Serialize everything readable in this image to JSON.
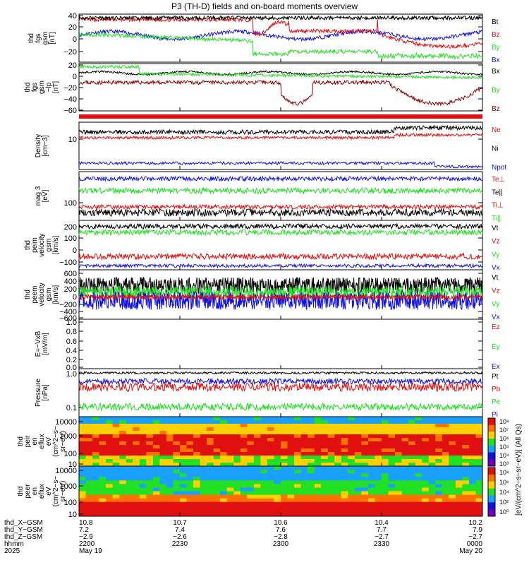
{
  "title": "P3 (TH-D) fields and on-board moments overview",
  "colors": {
    "black": "#000000",
    "red": "#e01010",
    "green": "#22e022",
    "blue": "#1010e0",
    "darkred": "#8b0000"
  },
  "chart_data": [
    {
      "type": "line",
      "panel": "thd_fgs_gsm",
      "ylabel_lines": [
        "thd",
        "fgs",
        "gsm",
        "[nT]"
      ],
      "yticks": [
        "40",
        "20",
        "0",
        "−20"
      ],
      "ylim": [
        -35,
        42
      ],
      "series": [
        {
          "name": "Bt",
          "color": "red_black",
          "legend_color": "#000000"
        },
        {
          "name": "Bz",
          "legend_color": "#e01010"
        },
        {
          "name": "By",
          "legend_color": "#22e022"
        },
        {
          "name": "Bx",
          "legend_color": "#1010e0"
        }
      ]
    },
    {
      "type": "line",
      "panel": "thd_fgs_gsm_lp",
      "ylabel_lines": [
        "thd",
        "fgs",
        "gsm",
        "−lp"
      ],
      "yunits": "[nT]",
      "yticks": [
        "20",
        "0",
        "−20",
        "−40",
        "−60"
      ],
      "ylim": [
        -75,
        25
      ],
      "series": [
        {
          "name": "Bx",
          "legend_color": "#000000"
        },
        {
          "name": "By",
          "legend_color": "#22e022"
        },
        {
          "name": "Bz",
          "legend_color": "#8b0000"
        }
      ]
    },
    {
      "type": "line",
      "panel": "density",
      "ylabel_lines": [
        "Density",
        "[cm−3]"
      ],
      "yticks": [
        "10"
      ],
      "scale": "log",
      "series": [
        {
          "name": "Ne",
          "legend_color": "#e01010"
        },
        {
          "name": "Ni",
          "legend_color": "#000000"
        },
        {
          "name": "Npot",
          "legend_color": "#1010e0"
        }
      ]
    },
    {
      "type": "line",
      "panel": "temperature",
      "ylabel_lines": [
        "mag 3",
        "[eV]"
      ],
      "yticks": [
        "100"
      ],
      "scale": "log",
      "series": [
        {
          "name": "Te⊥",
          "legend_color": "#e01010"
        },
        {
          "name": "Te||",
          "legend_color": "#000000"
        },
        {
          "name": "Ti⊥",
          "legend_color": "#e01010"
        },
        {
          "name": "Ti||",
          "legend_color": "#22e022"
        }
      ]
    },
    {
      "type": "line",
      "panel": "peim_velocity",
      "ylabel_lines": [
        "thd",
        "peim",
        "velocity",
        "gsm",
        "[km/s]"
      ],
      "yticks": [
        "200",
        "100",
        "0",
        "−100"
      ],
      "ylim": [
        -140,
        230
      ],
      "series": [
        {
          "name": "Vt",
          "legend_color": "#000000"
        },
        {
          "name": "Vz",
          "legend_color": "#e01010"
        },
        {
          "name": "Vy",
          "legend_color": "#22e022"
        },
        {
          "name": "Vx",
          "legend_color": "#1010e0"
        }
      ]
    },
    {
      "type": "line",
      "panel": "peem_velocity",
      "ylabel_lines": [
        "thd",
        "peem",
        "velocity",
        "gsm",
        "[km/s]"
      ],
      "yticks": [
        "600",
        "400",
        "200",
        "0",
        "−200",
        "−400",
        "−600"
      ],
      "ylim": [
        -600,
        600
      ],
      "series": [
        {
          "name": "Vt",
          "legend_color": "#000000"
        },
        {
          "name": "Vz",
          "legend_color": "#e01010"
        },
        {
          "name": "Vy",
          "legend_color": "#22e022"
        },
        {
          "name": "Vx",
          "legend_color": "#1010e0"
        }
      ]
    },
    {
      "type": "line",
      "panel": "efield",
      "ylabel_lines": [
        "E=−VxB",
        "[mV/m]"
      ],
      "yticks": [
        "1.0",
        "0.8",
        "0.6",
        "0.4",
        "0.2",
        "0.0"
      ],
      "ylim": [
        0,
        1
      ],
      "series": [
        {
          "name": "Ez",
          "legend_color": "#e01010"
        },
        {
          "name": "Ey",
          "legend_color": "#22e022"
        },
        {
          "name": "Ex",
          "legend_color": "#1010e0"
        }
      ]
    },
    {
      "type": "line",
      "panel": "pressure",
      "ylabel_lines": [
        "Pressure",
        "[nPa]"
      ],
      "yticks": [
        "1.0",
        "0.1"
      ],
      "scale": "log",
      "series": [
        {
          "name": "Pt",
          "legend_color": "#000000"
        },
        {
          "name": "Pb",
          "legend_color": "#e01010"
        },
        {
          "name": "Pe",
          "legend_color": "#22e022"
        },
        {
          "name": "Pi",
          "legend_color": "#1010e0"
        }
      ]
    },
    {
      "type": "heatmap",
      "panel": "peir_eflux",
      "ylabel_lines": [
        "thd",
        "peir",
        "en",
        "eflux",
        "eV",
        "(cm^2−s−",
        "sr−eV)"
      ],
      "yticks": [
        "10000",
        "1000",
        "100",
        "10"
      ],
      "scale": "log"
    },
    {
      "type": "heatmap",
      "panel": "peer_eflux",
      "ylabel_lines": [
        "thd",
        "peer",
        "en",
        "eflux",
        "eV",
        "(cm^2−s−",
        "sr−eV)"
      ],
      "yticks": [
        "10000",
        "1000",
        "100",
        "10"
      ],
      "scale": "log"
    }
  ],
  "colorbar": {
    "label": "[eV/(cm^2−s−sr−eV)] (All Qs)",
    "ticks_top": [
      "10⁸",
      "10⁷",
      "10⁶",
      "10⁵",
      "10⁴",
      "10³"
    ],
    "ticks_bottom": [
      "10⁸",
      "10⁶",
      "10⁴",
      "10²",
      "10⁰"
    ]
  },
  "xaxis": {
    "row_labels": [
      "thd_X−GSM",
      "thd_Y−GSM",
      "thd_Z−GSM",
      "hhmm",
      "2025"
    ],
    "columns": [
      {
        "x": "10.8",
        "y": "7.2",
        "z": "−2.9",
        "hhmm": "2200",
        "date": "May 19"
      },
      {
        "x": "10.7",
        "y": "7.4",
        "z": "−2.6",
        "hhmm": "2230",
        "date": ""
      },
      {
        "x": "10.6",
        "y": "7.6",
        "z": "−2.8",
        "hhmm": "2300",
        "date": ""
      },
      {
        "x": "10.4",
        "y": "7.7",
        "z": "−2.7",
        "hhmm": "2330",
        "date": ""
      },
      {
        "x": "10.2",
        "y": "7.9",
        "z": "−2.7",
        "hhmm": "0000",
        "date": "May 20"
      }
    ]
  }
}
